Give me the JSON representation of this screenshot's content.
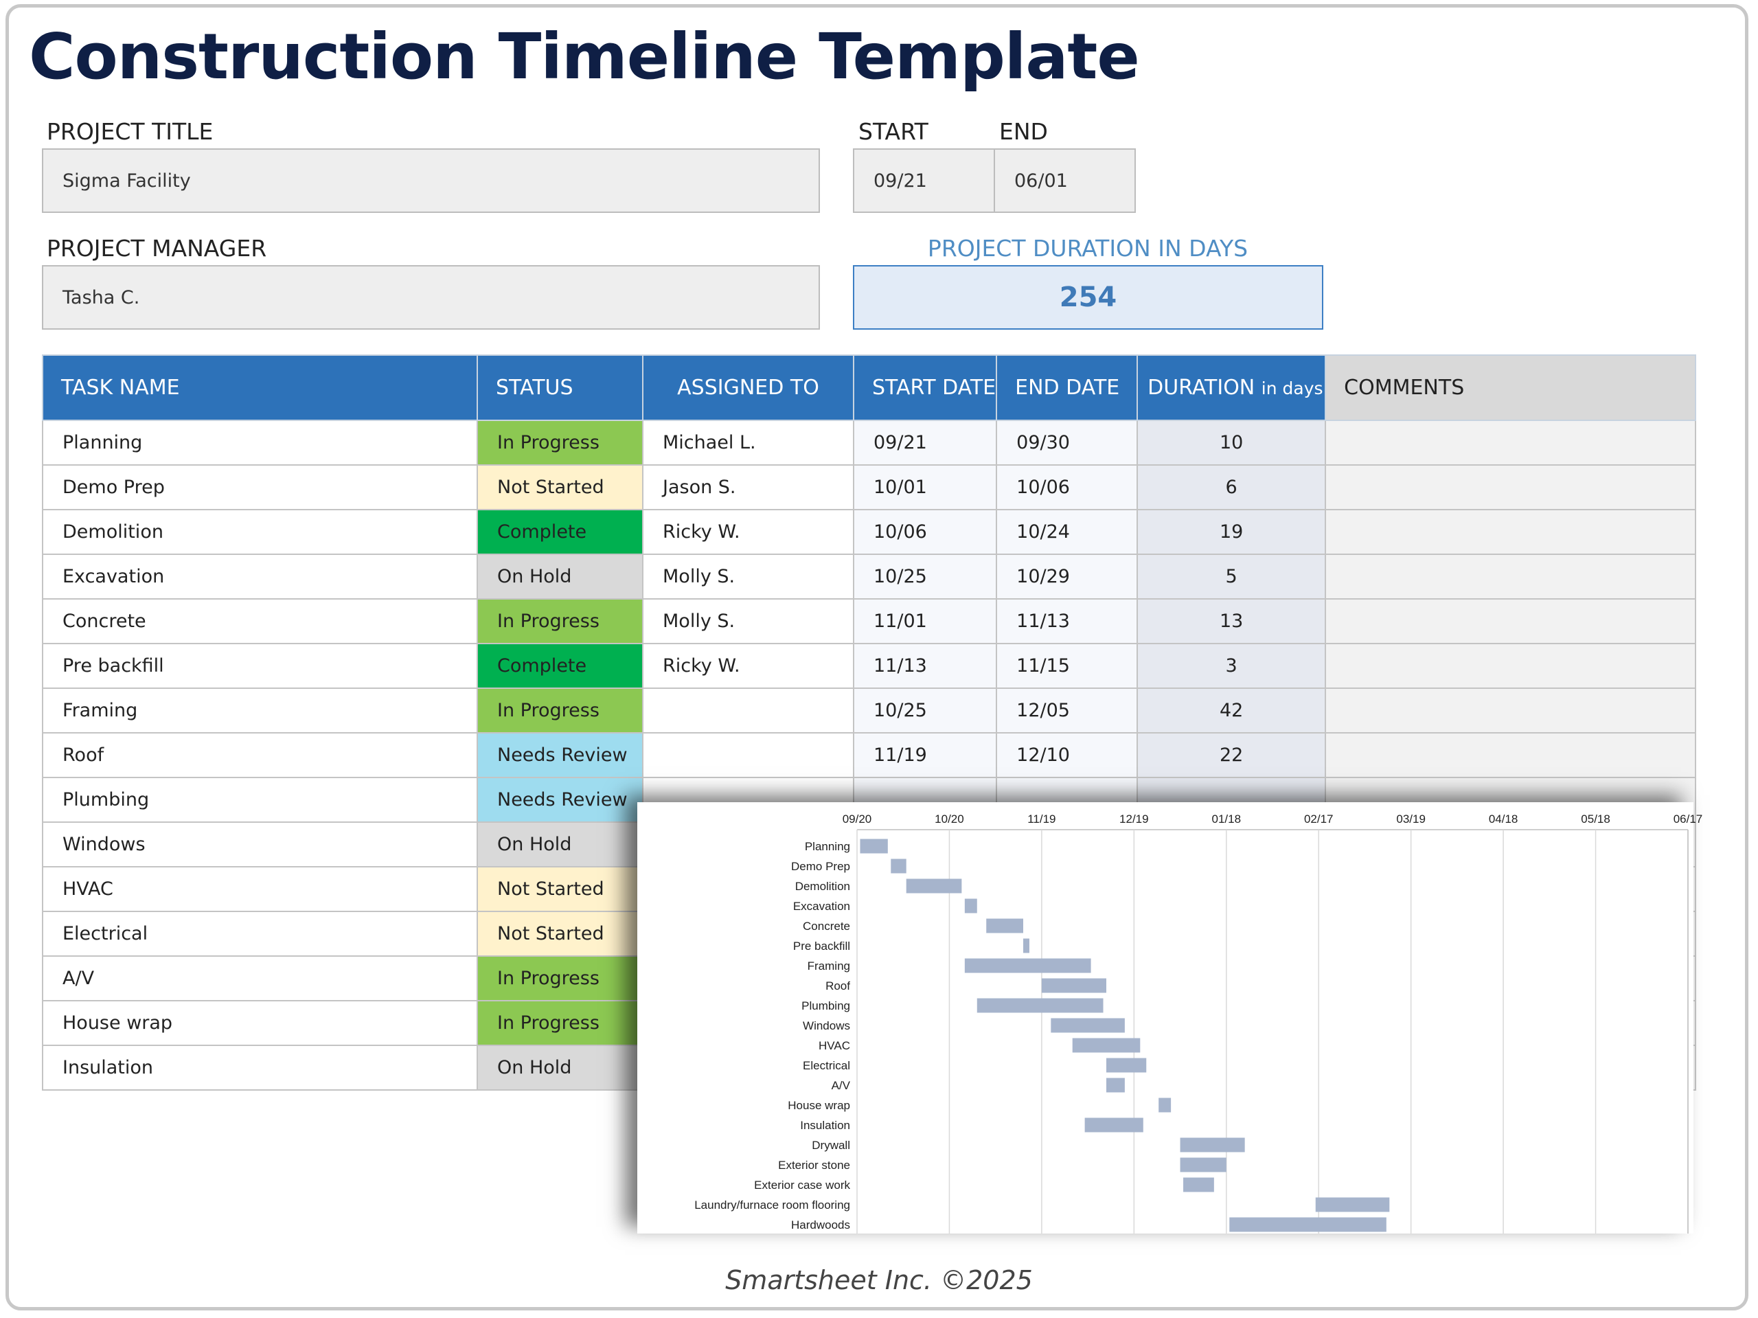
{
  "title": "Construction Timeline Template",
  "project": {
    "title_label": "PROJECT TITLE",
    "title_value": "Sigma Facility",
    "start_label": "START",
    "start_value": "09/21",
    "end_label": "END",
    "end_value": "06/01",
    "manager_label": "PROJECT MANAGER",
    "manager_value": "Tasha C.",
    "duration_label": "PROJECT DURATION IN DAYS",
    "duration_value": "254"
  },
  "table": {
    "headers": {
      "task": "TASK NAME",
      "status": "STATUS",
      "assigned": "ASSIGNED TO",
      "start": "START DATE",
      "end": "END DATE",
      "duration": "DURATION",
      "duration_unit": "in days",
      "comments": "COMMENTS"
    },
    "rows": [
      {
        "task": "Planning",
        "status": "In Progress",
        "assigned": "Michael L.",
        "start": "09/21",
        "end": "09/30",
        "duration": "10",
        "comments": ""
      },
      {
        "task": "Demo Prep",
        "status": "Not Started",
        "assigned": "Jason S.",
        "start": "10/01",
        "end": "10/06",
        "duration": "6",
        "comments": ""
      },
      {
        "task": "Demolition",
        "status": "Complete",
        "assigned": "Ricky W.",
        "start": "10/06",
        "end": "10/24",
        "duration": "19",
        "comments": ""
      },
      {
        "task": "Excavation",
        "status": "On Hold",
        "assigned": "Molly S.",
        "start": "10/25",
        "end": "10/29",
        "duration": "5",
        "comments": ""
      },
      {
        "task": "Concrete",
        "status": "In Progress",
        "assigned": "Molly S.",
        "start": "11/01",
        "end": "11/13",
        "duration": "13",
        "comments": ""
      },
      {
        "task": "Pre backfill",
        "status": "Complete",
        "assigned": "Ricky W.",
        "start": "11/13",
        "end": "11/15",
        "duration": "3",
        "comments": ""
      },
      {
        "task": "Framing",
        "status": "In Progress",
        "assigned": "",
        "start": "10/25",
        "end": "12/05",
        "duration": "42",
        "comments": ""
      },
      {
        "task": "Roof",
        "status": "Needs Review",
        "assigned": "",
        "start": "11/19",
        "end": "12/10",
        "duration": "22",
        "comments": ""
      },
      {
        "task": "Plumbing",
        "status": "Needs Review",
        "assigned": "",
        "start": "",
        "end": "",
        "duration": "",
        "comments": ""
      },
      {
        "task": "Windows",
        "status": "On Hold",
        "assigned": "",
        "start": "",
        "end": "",
        "duration": "",
        "comments": ""
      },
      {
        "task": "HVAC",
        "status": "Not Started",
        "assigned": "",
        "start": "",
        "end": "",
        "duration": "",
        "comments": ""
      },
      {
        "task": "Electrical",
        "status": "Not Started",
        "assigned": "",
        "start": "",
        "end": "",
        "duration": "",
        "comments": ""
      },
      {
        "task": "A/V",
        "status": "In Progress",
        "assigned": "",
        "start": "",
        "end": "",
        "duration": "",
        "comments": ""
      },
      {
        "task": "House wrap",
        "status": "In Progress",
        "assigned": "",
        "start": "",
        "end": "",
        "duration": "",
        "comments": ""
      },
      {
        "task": "Insulation",
        "status": "On Hold",
        "assigned": "",
        "start": "",
        "end": "",
        "duration": "",
        "comments": ""
      }
    ]
  },
  "status_colors": {
    "In Progress": "#8cc852",
    "Not Started": "#fff2cc",
    "Complete": "#00b050",
    "On Hold": "#d9d9d9",
    "Needs Review": "#9edcef"
  },
  "chart_data": {
    "type": "bar",
    "orientation": "horizontal-gantt",
    "x_ticks": [
      "09/20",
      "10/20",
      "11/19",
      "12/19",
      "01/18",
      "02/17",
      "03/19",
      "04/18",
      "05/18",
      "06/17"
    ],
    "xlim": [
      "09/20",
      "06/17"
    ],
    "grid": true,
    "bar_color": "#a6b4cc",
    "tasks": [
      {
        "name": "Planning",
        "start": "09/21",
        "end": "09/30"
      },
      {
        "name": "Demo Prep",
        "start": "10/01",
        "end": "10/06"
      },
      {
        "name": "Demolition",
        "start": "10/06",
        "end": "10/24"
      },
      {
        "name": "Excavation",
        "start": "10/25",
        "end": "10/29"
      },
      {
        "name": "Concrete",
        "start": "11/01",
        "end": "11/13"
      },
      {
        "name": "Pre backfill",
        "start": "11/13",
        "end": "11/15"
      },
      {
        "name": "Framing",
        "start": "10/25",
        "end": "12/05"
      },
      {
        "name": "Roof",
        "start": "11/19",
        "end": "12/10"
      },
      {
        "name": "Plumbing",
        "start": "10/29",
        "end": "12/09"
      },
      {
        "name": "Windows",
        "start": "11/22",
        "end": "12/16"
      },
      {
        "name": "HVAC",
        "start": "11/29",
        "end": "12/21"
      },
      {
        "name": "Electrical",
        "start": "12/10",
        "end": "12/23"
      },
      {
        "name": "A/V",
        "start": "12/10",
        "end": "12/16"
      },
      {
        "name": "House wrap",
        "start": "12/27",
        "end": "12/31"
      },
      {
        "name": "Insulation",
        "start": "12/03",
        "end": "12/22"
      },
      {
        "name": "Drywall",
        "start": "01/03",
        "end": "01/24"
      },
      {
        "name": "Exterior stone",
        "start": "01/03",
        "end": "01/18"
      },
      {
        "name": "Exterior case work",
        "start": "01/04",
        "end": "01/14"
      },
      {
        "name": "Laundry/furnace room flooring",
        "start": "02/16",
        "end": "03/12"
      },
      {
        "name": "Hardwoods",
        "start": "01/19",
        "end": "03/11"
      }
    ]
  },
  "footer": "Smartsheet Inc. ©2025"
}
